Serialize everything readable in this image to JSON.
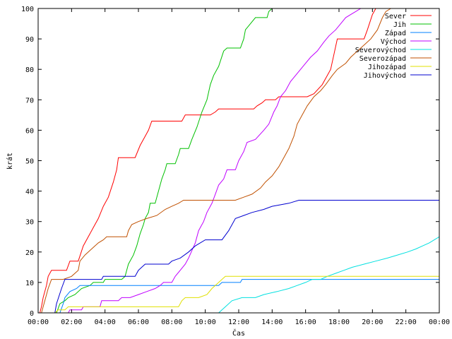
{
  "chart_data": {
    "type": "line",
    "xlabel": "Čas",
    "ylabel": "krát",
    "xlim": [
      0,
      24
    ],
    "ylim": [
      0,
      100
    ],
    "x_ticks": [
      {
        "value": 0,
        "label": "00:00"
      },
      {
        "value": 2,
        "label": "02:00"
      },
      {
        "value": 4,
        "label": "04:00"
      },
      {
        "value": 6,
        "label": "06:00"
      },
      {
        "value": 8,
        "label": "08:00"
      },
      {
        "value": 10,
        "label": "10:00"
      },
      {
        "value": 12,
        "label": "12:00"
      },
      {
        "value": 14,
        "label": "14:00"
      },
      {
        "value": 16,
        "label": "16:00"
      },
      {
        "value": 18,
        "label": "18:00"
      },
      {
        "value": 20,
        "label": "20:00"
      },
      {
        "value": 22,
        "label": "22:00"
      },
      {
        "value": 24,
        "label": "00:00"
      }
    ],
    "y_ticks": [
      0,
      10,
      20,
      30,
      40,
      50,
      60,
      70,
      80,
      90,
      100
    ],
    "grid": false,
    "legend_position": "top-right",
    "series": [
      {
        "name": "Sever",
        "color": "#ff0000",
        "points": [
          [
            0.1,
            0
          ],
          [
            0.2,
            2
          ],
          [
            0.3,
            5
          ],
          [
            0.5,
            9
          ],
          [
            0.6,
            12
          ],
          [
            0.8,
            14
          ],
          [
            1.7,
            14
          ],
          [
            1.9,
            17
          ],
          [
            2.4,
            17
          ],
          [
            2.7,
            22
          ],
          [
            3.0,
            25
          ],
          [
            3.3,
            28
          ],
          [
            3.6,
            31
          ],
          [
            3.9,
            35
          ],
          [
            4.2,
            38
          ],
          [
            4.5,
            43
          ],
          [
            4.7,
            47
          ],
          [
            4.8,
            51
          ],
          [
            5.4,
            51
          ],
          [
            5.8,
            51
          ],
          [
            6.1,
            55
          ],
          [
            6.4,
            58
          ],
          [
            6.6,
            60
          ],
          [
            6.8,
            63
          ],
          [
            8.6,
            63
          ],
          [
            8.8,
            65
          ],
          [
            10.3,
            65
          ],
          [
            10.6,
            66
          ],
          [
            10.8,
            67
          ],
          [
            12.9,
            67
          ],
          [
            13.1,
            68
          ],
          [
            13.4,
            69
          ],
          [
            13.6,
            70
          ],
          [
            14.2,
            70
          ],
          [
            14.4,
            71
          ],
          [
            15.9,
            71
          ],
          [
            16.1,
            71
          ],
          [
            16.5,
            72
          ],
          [
            17.0,
            75
          ],
          [
            17.5,
            80
          ],
          [
            17.7,
            85
          ],
          [
            17.9,
            90
          ],
          [
            19.5,
            90
          ],
          [
            19.7,
            93
          ],
          [
            20.0,
            98
          ],
          [
            20.2,
            100
          ]
        ]
      },
      {
        "name": "Jih",
        "color": "#00c000",
        "points": [
          [
            1.1,
            0
          ],
          [
            1.3,
            3
          ],
          [
            1.6,
            4
          ],
          [
            1.8,
            5
          ],
          [
            2.2,
            6
          ],
          [
            2.6,
            8
          ],
          [
            3.1,
            9
          ],
          [
            3.3,
            10
          ],
          [
            3.9,
            10
          ],
          [
            4.0,
            11
          ],
          [
            5.0,
            11
          ],
          [
            5.2,
            12
          ],
          [
            5.3,
            14
          ],
          [
            5.4,
            16
          ],
          [
            5.7,
            19
          ],
          [
            5.9,
            22
          ],
          [
            6.1,
            26
          ],
          [
            6.3,
            29
          ],
          [
            6.4,
            31
          ],
          [
            6.6,
            33
          ],
          [
            6.7,
            36
          ],
          [
            7.0,
            36
          ],
          [
            7.2,
            40
          ],
          [
            7.4,
            44
          ],
          [
            7.6,
            47
          ],
          [
            7.7,
            49
          ],
          [
            8.2,
            49
          ],
          [
            8.4,
            52
          ],
          [
            8.5,
            54
          ],
          [
            9.0,
            54
          ],
          [
            9.2,
            57
          ],
          [
            9.5,
            61
          ],
          [
            9.8,
            66
          ],
          [
            10.1,
            70
          ],
          [
            10.3,
            75
          ],
          [
            10.5,
            78
          ],
          [
            10.8,
            81
          ],
          [
            11.1,
            86
          ],
          [
            11.3,
            87
          ],
          [
            12.1,
            87
          ],
          [
            12.3,
            90
          ],
          [
            12.4,
            93
          ],
          [
            12.7,
            95
          ],
          [
            13.0,
            97
          ],
          [
            13.7,
            97
          ],
          [
            13.8,
            99
          ],
          [
            14.0,
            100
          ]
        ]
      },
      {
        "name": "Západ",
        "color": "#0080ff",
        "points": [
          [
            1.3,
            0
          ],
          [
            1.5,
            3
          ],
          [
            1.6,
            5
          ],
          [
            1.9,
            7
          ],
          [
            2.3,
            8
          ],
          [
            2.5,
            9
          ],
          [
            10.8,
            9
          ],
          [
            11.0,
            10
          ],
          [
            11.3,
            10
          ],
          [
            12.1,
            10
          ],
          [
            12.2,
            11
          ],
          [
            24,
            11
          ]
        ]
      },
      {
        "name": "Východ",
        "color": "#c000ff",
        "points": [
          [
            1.8,
            0
          ],
          [
            1.9,
            1
          ],
          [
            2.6,
            1
          ],
          [
            2.7,
            2
          ],
          [
            3.7,
            2
          ],
          [
            3.8,
            4
          ],
          [
            4.8,
            4
          ],
          [
            5.0,
            5
          ],
          [
            5.5,
            5
          ],
          [
            6.0,
            6
          ],
          [
            6.5,
            7
          ],
          [
            7.0,
            8
          ],
          [
            7.3,
            9
          ],
          [
            7.5,
            10
          ],
          [
            8.0,
            10
          ],
          [
            8.2,
            12
          ],
          [
            8.5,
            14
          ],
          [
            8.8,
            16
          ],
          [
            9.0,
            18
          ],
          [
            9.4,
            23
          ],
          [
            9.6,
            27
          ],
          [
            9.9,
            30
          ],
          [
            10.1,
            33
          ],
          [
            10.4,
            36
          ],
          [
            10.6,
            39
          ],
          [
            10.8,
            42
          ],
          [
            11.1,
            44
          ],
          [
            11.3,
            47
          ],
          [
            11.8,
            47
          ],
          [
            12.0,
            50
          ],
          [
            12.3,
            53
          ],
          [
            12.5,
            56
          ],
          [
            13.0,
            57
          ],
          [
            13.5,
            60
          ],
          [
            13.8,
            62
          ],
          [
            14.1,
            66
          ],
          [
            14.3,
            68
          ],
          [
            14.5,
            71
          ],
          [
            14.8,
            73
          ],
          [
            15.1,
            76
          ],
          [
            15.4,
            78
          ],
          [
            15.7,
            80
          ],
          [
            16.0,
            82
          ],
          [
            16.3,
            84
          ],
          [
            16.7,
            86
          ],
          [
            17.1,
            89
          ],
          [
            17.4,
            91
          ],
          [
            17.8,
            93
          ],
          [
            18.1,
            95
          ],
          [
            18.4,
            97
          ],
          [
            18.7,
            98
          ],
          [
            19.0,
            99
          ],
          [
            19.3,
            100
          ]
        ]
      },
      {
        "name": "Severovýchod",
        "color": "#00e0e0",
        "points": [
          [
            10.8,
            0
          ],
          [
            11.2,
            2
          ],
          [
            11.6,
            4
          ],
          [
            12.2,
            5
          ],
          [
            13.0,
            5
          ],
          [
            13.5,
            6
          ],
          [
            14.3,
            7
          ],
          [
            15.0,
            8
          ],
          [
            15.5,
            9
          ],
          [
            16.0,
            10
          ],
          [
            16.4,
            11
          ],
          [
            16.9,
            11
          ],
          [
            17.3,
            12
          ],
          [
            17.8,
            13
          ],
          [
            18.3,
            14
          ],
          [
            18.8,
            15
          ],
          [
            19.5,
            16
          ],
          [
            20.2,
            17
          ],
          [
            20.9,
            18
          ],
          [
            21.5,
            19
          ],
          [
            22.1,
            20
          ],
          [
            22.6,
            21
          ],
          [
            23.0,
            22
          ],
          [
            23.4,
            23
          ],
          [
            23.7,
            24
          ],
          [
            24,
            25
          ]
        ]
      },
      {
        "name": "Severozápad",
        "color": "#c05000",
        "points": [
          [
            0.2,
            0
          ],
          [
            0.4,
            4
          ],
          [
            0.6,
            8
          ],
          [
            0.8,
            11
          ],
          [
            1.5,
            11
          ],
          [
            2.0,
            12
          ],
          [
            2.4,
            14
          ],
          [
            2.5,
            17
          ],
          [
            2.8,
            19
          ],
          [
            3.2,
            21
          ],
          [
            3.6,
            23
          ],
          [
            3.9,
            24
          ],
          [
            4.1,
            25
          ],
          [
            5.3,
            25
          ],
          [
            5.4,
            27
          ],
          [
            5.6,
            29
          ],
          [
            6.0,
            30
          ],
          [
            6.5,
            31
          ],
          [
            7.1,
            32
          ],
          [
            7.6,
            34
          ],
          [
            8.0,
            35
          ],
          [
            8.4,
            36
          ],
          [
            8.7,
            37
          ],
          [
            9.9,
            37
          ],
          [
            10.3,
            37
          ],
          [
            11.8,
            37
          ],
          [
            12.3,
            38
          ],
          [
            12.8,
            39
          ],
          [
            13.3,
            41
          ],
          [
            13.6,
            43
          ],
          [
            14.0,
            45
          ],
          [
            14.4,
            48
          ],
          [
            14.7,
            51
          ],
          [
            15.0,
            54
          ],
          [
            15.3,
            58
          ],
          [
            15.5,
            62
          ],
          [
            15.8,
            65
          ],
          [
            16.1,
            68
          ],
          [
            16.5,
            71
          ],
          [
            16.9,
            73
          ],
          [
            17.2,
            75
          ],
          [
            17.6,
            78
          ],
          [
            17.9,
            80
          ],
          [
            18.4,
            82
          ],
          [
            18.7,
            84
          ],
          [
            19.1,
            86
          ],
          [
            19.5,
            88
          ],
          [
            19.9,
            90
          ],
          [
            20.3,
            93
          ],
          [
            20.6,
            97
          ],
          [
            20.8,
            99
          ],
          [
            21.1,
            100
          ]
        ]
      },
      {
        "name": "Jihozápad",
        "color": "#e0e000",
        "points": [
          [
            1.0,
            0
          ],
          [
            1.2,
            1
          ],
          [
            1.6,
            1
          ],
          [
            1.8,
            2
          ],
          [
            8.4,
            2
          ],
          [
            8.6,
            4
          ],
          [
            8.8,
            5
          ],
          [
            9.6,
            5
          ],
          [
            10.1,
            6
          ],
          [
            10.4,
            8
          ],
          [
            10.8,
            10
          ],
          [
            11.2,
            12
          ],
          [
            24,
            12
          ]
        ]
      },
      {
        "name": "Jihovýchod",
        "color": "#0000d0",
        "points": [
          [
            1.0,
            0
          ],
          [
            1.1,
            3
          ],
          [
            1.4,
            8
          ],
          [
            1.6,
            11
          ],
          [
            3.8,
            11
          ],
          [
            3.9,
            12
          ],
          [
            5.8,
            12
          ],
          [
            6.0,
            14
          ],
          [
            6.4,
            16
          ],
          [
            7.8,
            16
          ],
          [
            8.0,
            17
          ],
          [
            8.5,
            18
          ],
          [
            9.0,
            20
          ],
          [
            9.4,
            22
          ],
          [
            10.0,
            24
          ],
          [
            11.0,
            24
          ],
          [
            11.4,
            27
          ],
          [
            11.8,
            31
          ],
          [
            12.3,
            32
          ],
          [
            12.8,
            33
          ],
          [
            13.5,
            34
          ],
          [
            14.0,
            35
          ],
          [
            15.0,
            36
          ],
          [
            15.6,
            37
          ],
          [
            24,
            37
          ]
        ]
      }
    ]
  }
}
